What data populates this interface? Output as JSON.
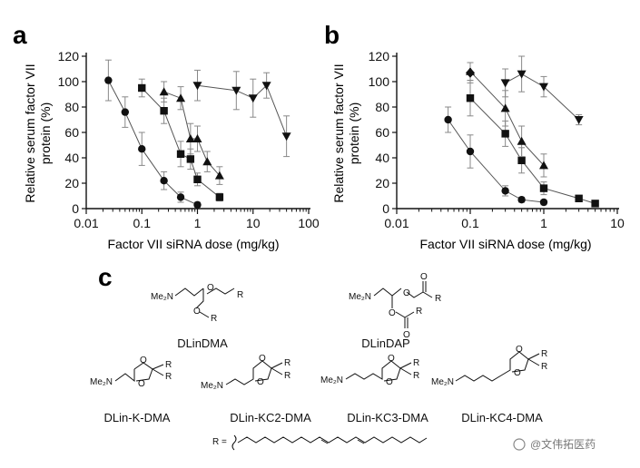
{
  "panel_labels": {
    "a": "a",
    "b": "b",
    "c": "c"
  },
  "chart_data": [
    {
      "type": "scatter",
      "panel": "a",
      "xscale": "log",
      "xlabel": "Factor VII siRNA dose (mg/kg)",
      "ylabel_line1": "Relative serum factor VII",
      "ylabel_line2": "protein (%)",
      "xlim": [
        0.01,
        100
      ],
      "ylim": [
        0,
        120
      ],
      "xticks": [
        0.01,
        0.1,
        1,
        10,
        100
      ],
      "xtick_labels": [
        "0.01",
        "0.1",
        "1",
        "10",
        "100"
      ],
      "yticks": [
        0,
        20,
        40,
        60,
        80,
        100,
        120
      ],
      "ytick_labels": [
        "0",
        "20",
        "40",
        "60",
        "80",
        "100",
        "120"
      ],
      "series": [
        {
          "name": "circle",
          "marker": "circle",
          "x": [
            0.025,
            0.05,
            0.1,
            0.25,
            0.5,
            1.0
          ],
          "y": [
            101,
            76,
            47,
            22,
            9,
            3
          ],
          "err": [
            16,
            12,
            13,
            7,
            4,
            2
          ]
        },
        {
          "name": "square",
          "marker": "square",
          "x": [
            0.1,
            0.25,
            0.5,
            0.75,
            1.0,
            2.5
          ],
          "y": [
            95,
            77,
            43,
            39,
            23,
            9
          ],
          "err": [
            7,
            10,
            10,
            8,
            5,
            3
          ]
        },
        {
          "name": "triangle-up",
          "marker": "triangle-up",
          "x": [
            0.25,
            0.5,
            0.75,
            1.0,
            1.5,
            2.5
          ],
          "y": [
            92,
            87,
            55,
            55,
            37,
            26
          ],
          "err": [
            8,
            9,
            12,
            10,
            8,
            7
          ]
        },
        {
          "name": "triangle-down",
          "marker": "triangle-down",
          "x": [
            1.0,
            5.0,
            10.0,
            17.5,
            40.0
          ],
          "y": [
            97,
            93,
            87,
            97,
            57
          ],
          "err": [
            12,
            15,
            15,
            10,
            16
          ]
        }
      ]
    },
    {
      "type": "scatter",
      "panel": "b",
      "xscale": "log",
      "xlabel": "Factor VII siRNA dose (mg/kg)",
      "ylabel_line1": "Relative serum factor VII",
      "ylabel_line2": "protein (%)",
      "xlim": [
        0.01,
        10
      ],
      "ylim": [
        0,
        120
      ],
      "xticks": [
        0.01,
        0.1,
        1,
        10
      ],
      "xtick_labels": [
        "0.01",
        "0.1",
        "1",
        "10"
      ],
      "yticks": [
        0,
        20,
        40,
        60,
        80,
        100,
        120
      ],
      "ytick_labels": [
        "0",
        "20",
        "40",
        "60",
        "80",
        "100",
        "120"
      ],
      "series": [
        {
          "name": "circle",
          "marker": "circle",
          "x": [
            0.05,
            0.1,
            0.3,
            0.5,
            1.0
          ],
          "y": [
            70,
            45,
            14,
            7,
            5
          ],
          "err": [
            10,
            13,
            4,
            2,
            2
          ]
        },
        {
          "name": "square",
          "marker": "square",
          "x": [
            0.1,
            0.3,
            0.5,
            1.0,
            3.0,
            5.0
          ],
          "y": [
            87,
            59,
            38,
            16,
            8,
            4
          ],
          "err": [
            14,
            10,
            10,
            5,
            2,
            2
          ]
        },
        {
          "name": "triangle-up",
          "marker": "triangle-up",
          "x": [
            0.1,
            0.3,
            0.5,
            1.0
          ],
          "y": [
            108,
            79,
            53,
            34
          ],
          "err": [
            7,
            14,
            12,
            9
          ]
        },
        {
          "name": "diamond",
          "marker": "diamond",
          "x": [
            0.1
          ],
          "y": [
            107
          ],
          "err": [
            8
          ]
        },
        {
          "name": "triangle-down",
          "marker": "triangle-down",
          "x": [
            0.3,
            0.5,
            1.0,
            3.0
          ],
          "y": [
            99,
            106,
            96,
            70
          ],
          "err": [
            11,
            14,
            8,
            4
          ]
        }
      ]
    }
  ],
  "structures": {
    "dlindma": {
      "name": "DLinDMA",
      "me2n": "Me₂N",
      "o1": "O",
      "o2": "O",
      "r1": "R",
      "r2": "R"
    },
    "dlindap": {
      "name": "DLinDAP",
      "me2n": "Me₂N",
      "o1": "O",
      "o2": "O",
      "o3": "O",
      "o4": "O",
      "r1": "R",
      "r2": "R"
    },
    "kdma": {
      "name": "DLin-K-DMA",
      "me2n": "Me₂N",
      "o1": "O",
      "o2": "O",
      "r1": "R",
      "r2": "R"
    },
    "kc2": {
      "name": "DLin-KC2-DMA",
      "me2n": "Me₂N",
      "o1": "O",
      "o2": "O",
      "r1": "R",
      "r2": "R"
    },
    "kc3": {
      "name": "DLin-KC3-DMA",
      "me2n": "Me₂N",
      "o1": "O",
      "o2": "O",
      "r1": "R",
      "r2": "R"
    },
    "kc4": {
      "name": "DLin-KC4-DMA",
      "me2n": "Me₂N",
      "o1": "O",
      "o2": "O",
      "r1": "R",
      "r2": "R"
    },
    "r_definition": {
      "label": "R ="
    }
  },
  "watermark": {
    "text": "@文伟拓医药"
  }
}
